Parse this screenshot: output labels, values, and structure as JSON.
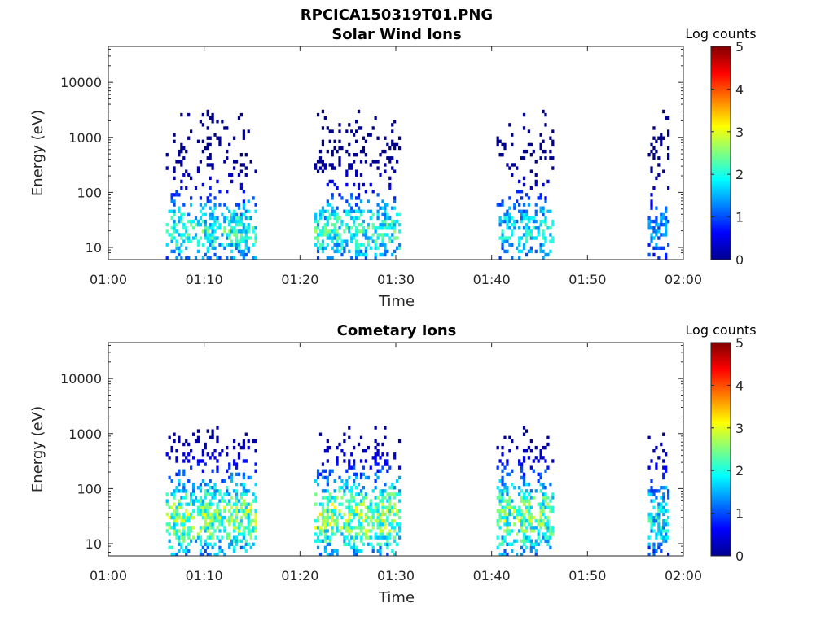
{
  "figure": {
    "title": "RPCICA150319T01.PNG"
  },
  "chart_data": [
    {
      "type": "heatmap",
      "title": "Solar Wind Ions",
      "xlabel": "Time",
      "ylabel": "Energy (eV)",
      "x_ticks": [
        "01:00",
        "01:10",
        "01:20",
        "01:30",
        "01:40",
        "01:50",
        "02:00"
      ],
      "xlim_minutes": [
        60,
        120
      ],
      "y_scale": "log",
      "y_ticks": [
        "10",
        "100",
        "1000",
        "10000"
      ],
      "ylim": [
        6,
        45000
      ],
      "colorbar": {
        "label": "Log counts",
        "ticks": [
          "0",
          "1",
          "2",
          "3",
          "4",
          "5"
        ],
        "range": [
          0,
          5
        ],
        "colormap": "jet"
      },
      "grid": false,
      "bursts": [
        {
          "t_start": 66,
          "t_end": 75.5,
          "e_center": 20,
          "e_width": 1.6,
          "peak_level": 2.6,
          "high_center": 450,
          "high_width": 1.9,
          "density": 0.6
        },
        {
          "t_start": 81.5,
          "t_end": 90.5,
          "e_center": 20,
          "e_width": 1.6,
          "peak_level": 2.7,
          "high_center": 500,
          "high_width": 1.9,
          "density": 0.65
        },
        {
          "t_start": 100.5,
          "t_end": 106.5,
          "e_center": 20,
          "e_width": 1.6,
          "peak_level": 2.3,
          "high_center": 450,
          "high_width": 1.9,
          "density": 0.55
        },
        {
          "t_start": 116.3,
          "t_end": 118.4,
          "e_center": 20,
          "e_width": 1.5,
          "peak_level": 1.8,
          "high_center": 700,
          "high_width": 2.0,
          "density": 0.6
        }
      ]
    },
    {
      "type": "heatmap",
      "title": "Cometary Ions",
      "xlabel": "Time",
      "ylabel": "Energy (eV)",
      "x_ticks": [
        "01:00",
        "01:10",
        "01:20",
        "01:30",
        "01:40",
        "01:50",
        "02:00"
      ],
      "xlim_minutes": [
        60,
        120
      ],
      "y_scale": "log",
      "y_ticks": [
        "10",
        "100",
        "1000",
        "10000"
      ],
      "ylim": [
        6,
        45000
      ],
      "colorbar": {
        "label": "Log counts",
        "ticks": [
          "0",
          "1",
          "2",
          "3",
          "4",
          "5"
        ],
        "range": [
          0,
          5
        ],
        "colormap": "jet"
      },
      "grid": false,
      "bursts": [
        {
          "t_start": 66,
          "t_end": 75.5,
          "e_center": 30,
          "e_width": 1.9,
          "peak_level": 3.2,
          "high_center": 250,
          "high_width": 1.6,
          "density": 0.75
        },
        {
          "t_start": 81.5,
          "t_end": 90.5,
          "e_center": 30,
          "e_width": 1.9,
          "peak_level": 3.3,
          "high_center": 250,
          "high_width": 1.6,
          "density": 0.78
        },
        {
          "t_start": 100.5,
          "t_end": 106.5,
          "e_center": 30,
          "e_width": 1.9,
          "peak_level": 3.1,
          "high_center": 250,
          "high_width": 1.6,
          "density": 0.75
        },
        {
          "t_start": 116.3,
          "t_end": 118.4,
          "e_center": 30,
          "e_width": 1.8,
          "peak_level": 2.4,
          "high_center": 300,
          "high_width": 1.6,
          "density": 0.75
        }
      ]
    }
  ]
}
